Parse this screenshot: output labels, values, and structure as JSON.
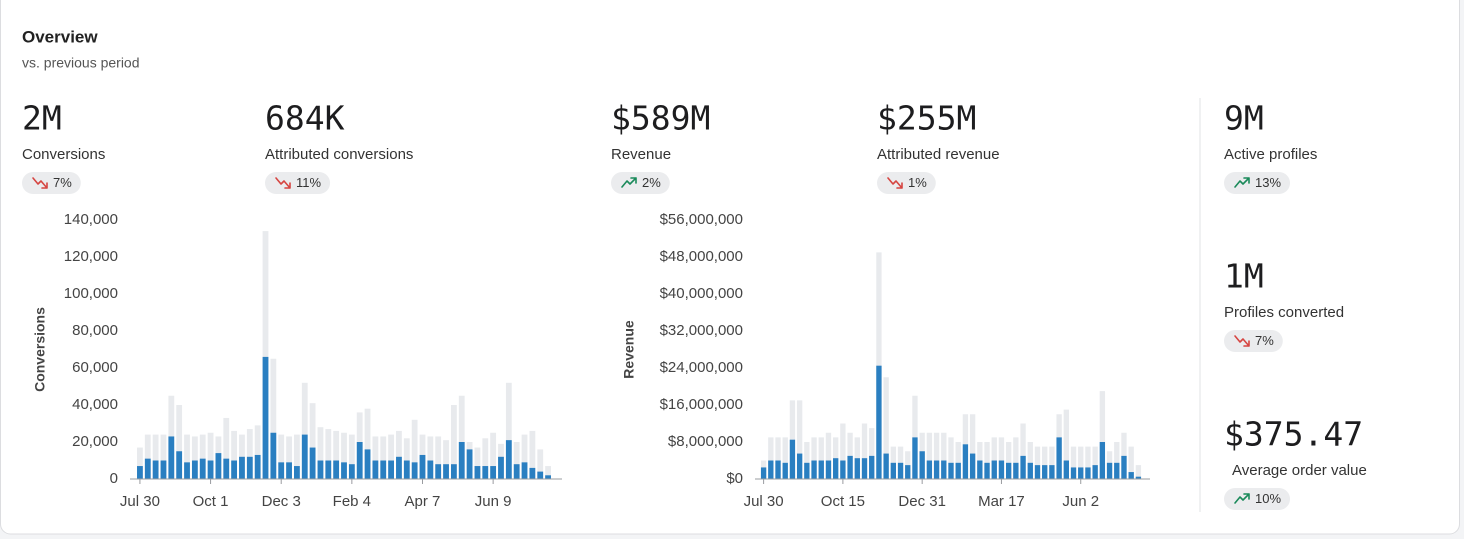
{
  "header": {
    "title": "Overview",
    "subtitle": "vs. previous period"
  },
  "kpis": [
    {
      "value": "2M",
      "label": "Conversions",
      "change": "7%",
      "direction": "down"
    },
    {
      "value": "684K",
      "label": "Attributed conversions",
      "change": "11%",
      "direction": "down"
    },
    {
      "value": "$589M",
      "label": "Revenue",
      "change": "2%",
      "direction": "up"
    },
    {
      "value": "$255M",
      "label": "Attributed revenue",
      "change": "1%",
      "direction": "down"
    },
    {
      "value": "9M",
      "label": "Active profiles",
      "change": "13%",
      "direction": "up"
    },
    {
      "value": "1M",
      "label": "Profiles converted",
      "change": "7%",
      "direction": "down"
    },
    {
      "value": "$375.47",
      "label": "Average order value",
      "change": "10%",
      "direction": "up"
    }
  ],
  "chart_data": [
    {
      "type": "bar",
      "barmode": "overlay",
      "ylabel": "Conversions",
      "categories": [
        "Jul 30",
        null,
        null,
        null,
        null,
        null,
        null,
        null,
        null,
        "Oct 1",
        null,
        null,
        null,
        null,
        null,
        null,
        null,
        null,
        "Dec 3",
        null,
        null,
        null,
        null,
        null,
        null,
        null,
        null,
        "Feb 4",
        null,
        null,
        null,
        null,
        null,
        null,
        null,
        null,
        "Apr 7",
        null,
        null,
        null,
        null,
        null,
        null,
        null,
        null,
        "Jun 9",
        null,
        null,
        null,
        null,
        null,
        null,
        null
      ],
      "series": [
        {
          "color": "#e8eaed",
          "values": [
            17000,
            24000,
            24000,
            24000,
            45000,
            40000,
            24000,
            23000,
            24000,
            25000,
            23000,
            33000,
            26000,
            24000,
            27000,
            29000,
            134000,
            65000,
            24000,
            23000,
            24000,
            52000,
            41000,
            28000,
            27000,
            26000,
            25000,
            24000,
            36000,
            38000,
            23000,
            23000,
            24000,
            26000,
            22000,
            32000,
            24000,
            23000,
            23000,
            21000,
            40000,
            45000,
            20000,
            17000,
            22000,
            25000,
            19000,
            52000,
            20000,
            24000,
            26000,
            16000,
            7000
          ]
        },
        {
          "color": "#2a7fc1",
          "values": [
            7000,
            11000,
            10000,
            10000,
            23000,
            15000,
            9000,
            10000,
            11000,
            10000,
            14000,
            11000,
            10000,
            12000,
            12000,
            13000,
            66000,
            25000,
            9000,
            9000,
            7000,
            24000,
            17000,
            10000,
            10000,
            10000,
            9000,
            8000,
            20000,
            16000,
            10000,
            10000,
            10000,
            12000,
            10000,
            9000,
            13000,
            10000,
            8000,
            8000,
            8000,
            20000,
            16000,
            7000,
            7000,
            7000,
            12000,
            21000,
            8000,
            9000,
            6000,
            4000,
            2000
          ]
        }
      ],
      "ylim": [
        0,
        140000
      ],
      "yticks": [
        0,
        {
          "value": 20000,
          "label": "20,000"
        },
        {
          "value": 40000,
          "label": "40,000"
        },
        {
          "value": 60000,
          "label": "60,000"
        },
        {
          "value": 80000,
          "label": "80,000"
        },
        {
          "value": 100000,
          "label": "100,000"
        },
        {
          "value": 120000,
          "label": "120,000"
        },
        {
          "value": 140000,
          "label": "140,000"
        }
      ],
      "grid": false
    },
    {
      "type": "bar",
      "barmode": "overlay",
      "ylabel": "Revenue",
      "categories": [
        "Jul 30",
        null,
        null,
        null,
        null,
        null,
        null,
        null,
        null,
        null,
        null,
        "Oct 15",
        null,
        null,
        null,
        null,
        null,
        null,
        null,
        null,
        null,
        null,
        "Dec 31",
        null,
        null,
        null,
        null,
        null,
        null,
        null,
        null,
        null,
        null,
        "Mar 17",
        null,
        null,
        null,
        null,
        null,
        null,
        null,
        null,
        null,
        null,
        "Jun 2",
        null,
        null,
        null,
        null,
        null,
        null,
        null,
        null
      ],
      "series": [
        {
          "color": "#e8eaed",
          "values": [
            4000000,
            9000000,
            9000000,
            9000000,
            17000000,
            17000000,
            8000000,
            9000000,
            9000000,
            10000000,
            9000000,
            12000000,
            10000000,
            9000000,
            12000000,
            11000000,
            49000000,
            22000000,
            7000000,
            7000000,
            6000000,
            18000000,
            10000000,
            10000000,
            10000000,
            10000000,
            9000000,
            8000000,
            14000000,
            14000000,
            8000000,
            8000000,
            9000000,
            9000000,
            8000000,
            9000000,
            12000000,
            8000000,
            7000000,
            7000000,
            7000000,
            14000000,
            15000000,
            7000000,
            7000000,
            7000000,
            7000000,
            19000000,
            6000000,
            8000000,
            10000000,
            7000000,
            3000000
          ]
        },
        {
          "color": "#2a7fc1",
          "values": [
            2500000,
            4000000,
            4000000,
            3500000,
            8500000,
            5500000,
            3500000,
            4000000,
            4000000,
            4000000,
            4500000,
            4000000,
            5000000,
            4500000,
            4500000,
            5000000,
            24500000,
            5500000,
            3500000,
            3500000,
            3000000,
            9000000,
            6000000,
            4000000,
            4000000,
            4000000,
            3500000,
            3500000,
            7500000,
            5500000,
            4000000,
            3500000,
            4000000,
            4000000,
            3500000,
            3500000,
            5000000,
            3500000,
            3000000,
            3000000,
            3000000,
            9000000,
            4000000,
            2500000,
            2500000,
            2500000,
            3000000,
            8000000,
            3500000,
            3500000,
            5000000,
            1500000,
            500000
          ]
        }
      ],
      "ylim": [
        0,
        56000000
      ],
      "yticks": [
        {
          "value": 0,
          "label": "$0"
        },
        {
          "value": 8000000,
          "label": "$8,000,000"
        },
        {
          "value": 16000000,
          "label": "$16,000,000"
        },
        {
          "value": 24000000,
          "label": "$24,000,000"
        },
        {
          "value": 32000000,
          "label": "$32,000,000"
        },
        {
          "value": 40000000,
          "label": "$40,000,000"
        },
        {
          "value": 48000000,
          "label": "$48,000,000"
        },
        {
          "value": 56000000,
          "label": "$56,000,000"
        }
      ],
      "grid": false
    }
  ]
}
